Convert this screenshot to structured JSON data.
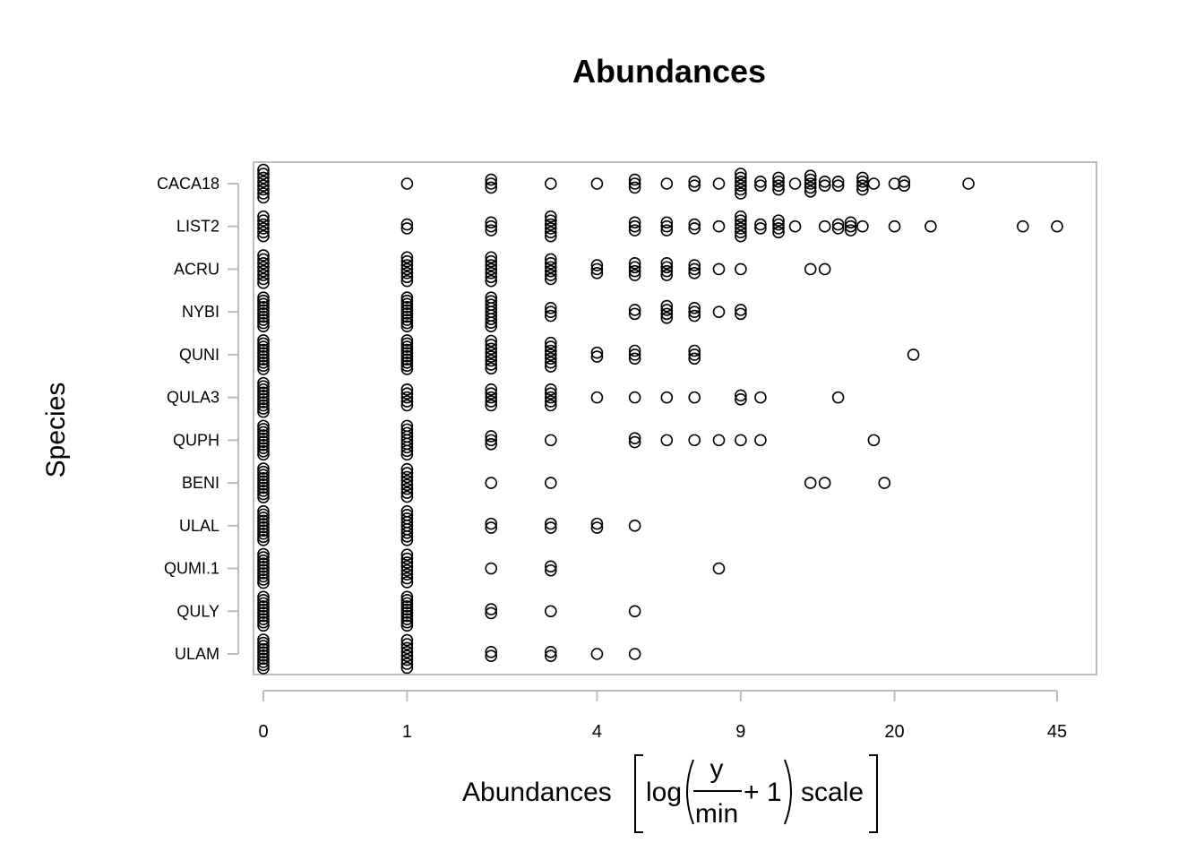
{
  "chart_data": {
    "type": "scatter",
    "title": "Abundances",
    "xlabel": {
      "prefix": "Abundances",
      "func": "log",
      "numerator": "y",
      "denominator": "min",
      "plus": "+ 1",
      "suffix": "scale"
    },
    "ylabel": "Species",
    "x_scale": "log(y/min + 1)",
    "x_ticks": [
      0,
      1,
      4,
      9,
      20,
      45
    ],
    "xlim": [
      0,
      50
    ],
    "grid": false,
    "legend": "none",
    "categories": [
      "CACA18",
      "LIST2",
      "ACRU",
      "NYBI",
      "QUNI",
      "QULA3",
      "QUPH",
      "BENI",
      "ULAL",
      "QUMI.1",
      "QULY",
      "ULAM"
    ],
    "series": [
      {
        "species": "CACA18",
        "x": [
          0,
          1,
          2,
          3,
          4,
          5,
          6,
          7,
          8,
          9,
          10,
          11,
          12,
          13,
          14,
          15,
          17,
          18,
          20,
          21,
          29
        ],
        "counts": [
          8,
          1,
          3,
          1,
          1,
          3,
          1,
          2,
          1,
          6,
          2,
          4,
          1,
          5,
          2,
          2,
          4,
          1,
          1,
          2,
          1
        ]
      },
      {
        "species": "LIST2",
        "x": [
          0,
          1,
          2,
          3,
          5,
          6,
          7,
          8,
          9,
          10,
          11,
          12,
          14,
          15,
          16,
          17,
          20,
          24,
          38,
          45
        ],
        "counts": [
          6,
          2,
          3,
          6,
          3,
          3,
          2,
          1,
          6,
          2,
          4,
          1,
          1,
          2,
          3,
          1,
          1,
          1,
          1,
          1
        ]
      },
      {
        "species": "ACRU",
        "x": [
          0,
          1,
          2,
          3,
          4,
          5,
          6,
          7,
          8,
          9,
          13,
          14
        ],
        "counts": [
          8,
          7,
          7,
          6,
          3,
          4,
          4,
          3,
          1,
          1,
          1,
          1
        ]
      },
      {
        "species": "NYBI",
        "x": [
          0,
          1,
          2,
          3,
          5,
          6,
          7,
          8,
          9
        ],
        "counts": [
          10,
          10,
          9,
          3,
          2,
          4,
          3,
          1,
          2
        ]
      },
      {
        "species": "QUNI",
        "x": [
          0,
          1,
          2,
          3,
          4,
          5,
          7,
          22
        ],
        "counts": [
          10,
          10,
          8,
          7,
          2,
          3,
          3,
          1
        ]
      },
      {
        "species": "QULA3",
        "x": [
          0,
          1,
          2,
          3,
          4,
          5,
          6,
          7,
          9,
          10,
          15
        ],
        "counts": [
          10,
          5,
          5,
          5,
          1,
          1,
          1,
          1,
          2,
          1,
          1
        ]
      },
      {
        "species": "QUPH",
        "x": [
          0,
          1,
          2,
          3,
          5,
          6,
          7,
          8,
          9,
          10,
          18
        ],
        "counts": [
          10,
          9,
          3,
          1,
          2,
          1,
          1,
          1,
          1,
          1,
          1
        ]
      },
      {
        "species": "BENI",
        "x": [
          0,
          1,
          2,
          3,
          13,
          14,
          19
        ],
        "counts": [
          10,
          8,
          1,
          1,
          1,
          1,
          1
        ]
      },
      {
        "species": "ULAL",
        "x": [
          0,
          1,
          2,
          3,
          4,
          5
        ],
        "counts": [
          10,
          9,
          2,
          2,
          2,
          1
        ]
      },
      {
        "species": "QUMI.1",
        "x": [
          0,
          1,
          2,
          3,
          8
        ],
        "counts": [
          10,
          8,
          1,
          2,
          1
        ]
      },
      {
        "species": "QULY",
        "x": [
          0,
          1,
          2,
          3,
          5
        ],
        "counts": [
          10,
          10,
          2,
          1,
          1
        ]
      },
      {
        "species": "ULAM",
        "x": [
          0,
          1,
          2,
          3,
          4,
          5
        ],
        "counts": [
          10,
          8,
          2,
          2,
          1,
          1
        ]
      }
    ]
  }
}
